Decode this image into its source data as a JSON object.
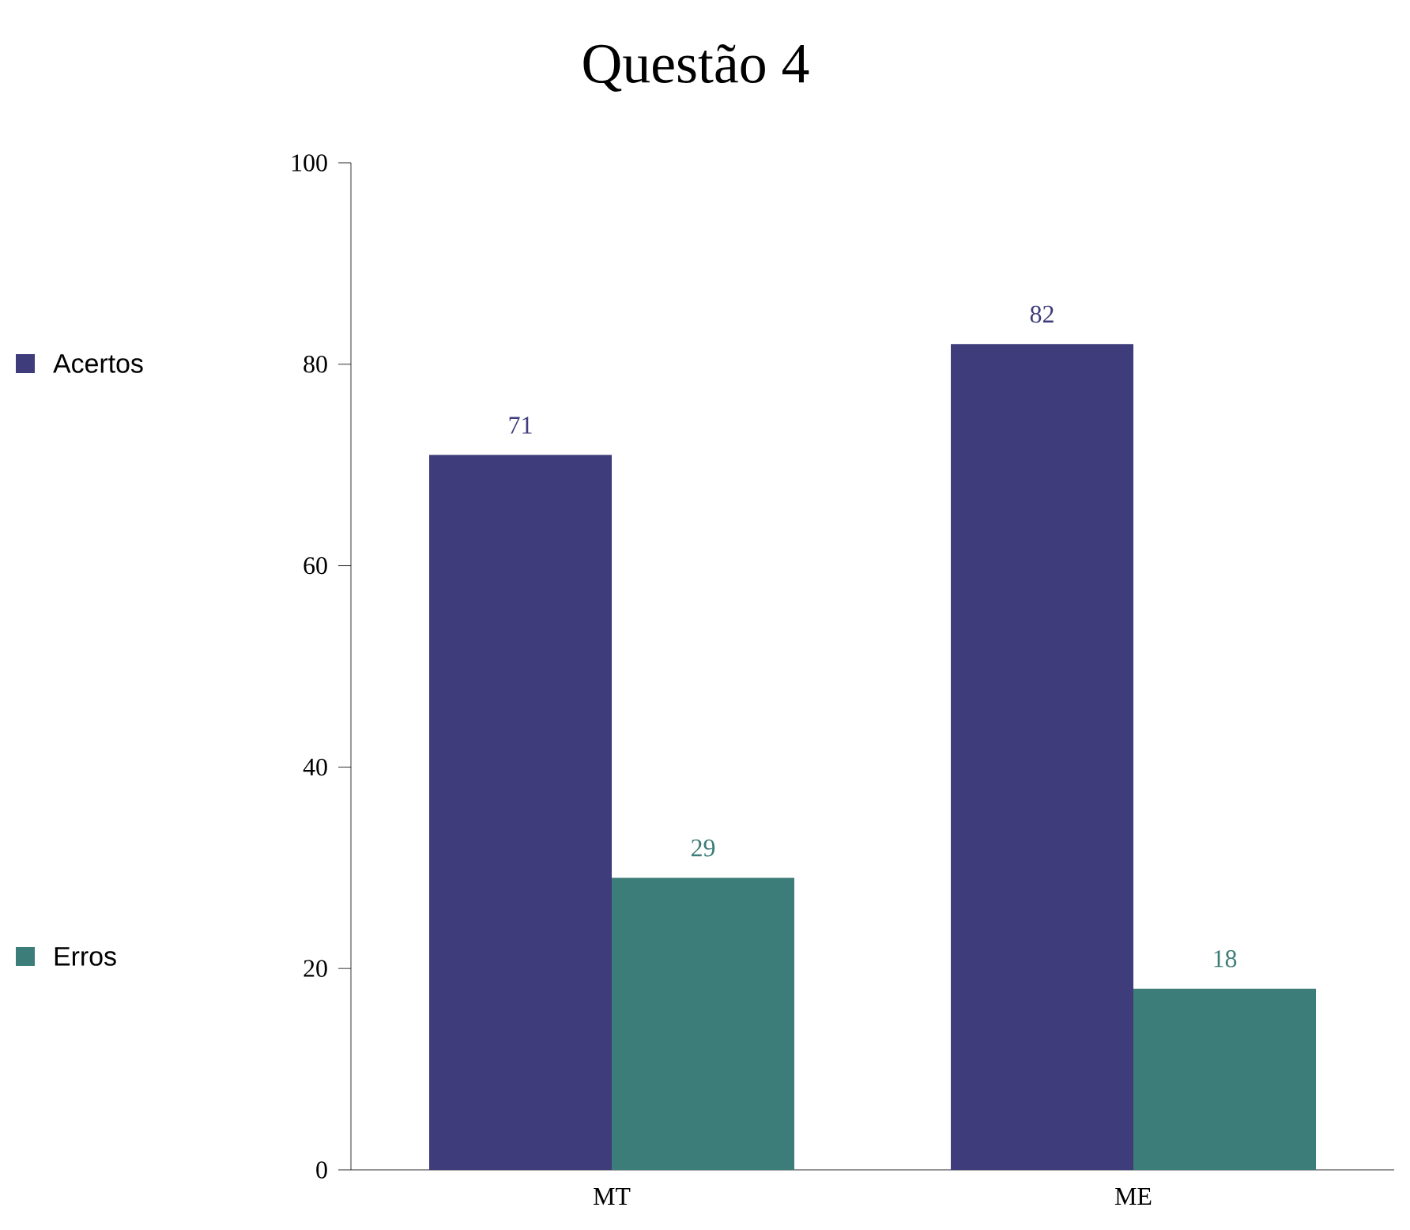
{
  "chart_data": {
    "type": "bar",
    "title": "Questão 4",
    "categories": [
      "MT",
      "ME"
    ],
    "series": [
      {
        "name": "Acertos",
        "color": "#3e3c7a",
        "values": [
          71,
          82
        ]
      },
      {
        "name": "Erros",
        "color": "#3d7d79",
        "values": [
          29,
          18
        ]
      }
    ],
    "ylim": [
      0,
      100
    ],
    "yticks": [
      0,
      20,
      40,
      60,
      80,
      100
    ],
    "data_labels": true,
    "legend": "left",
    "grid": false
  }
}
